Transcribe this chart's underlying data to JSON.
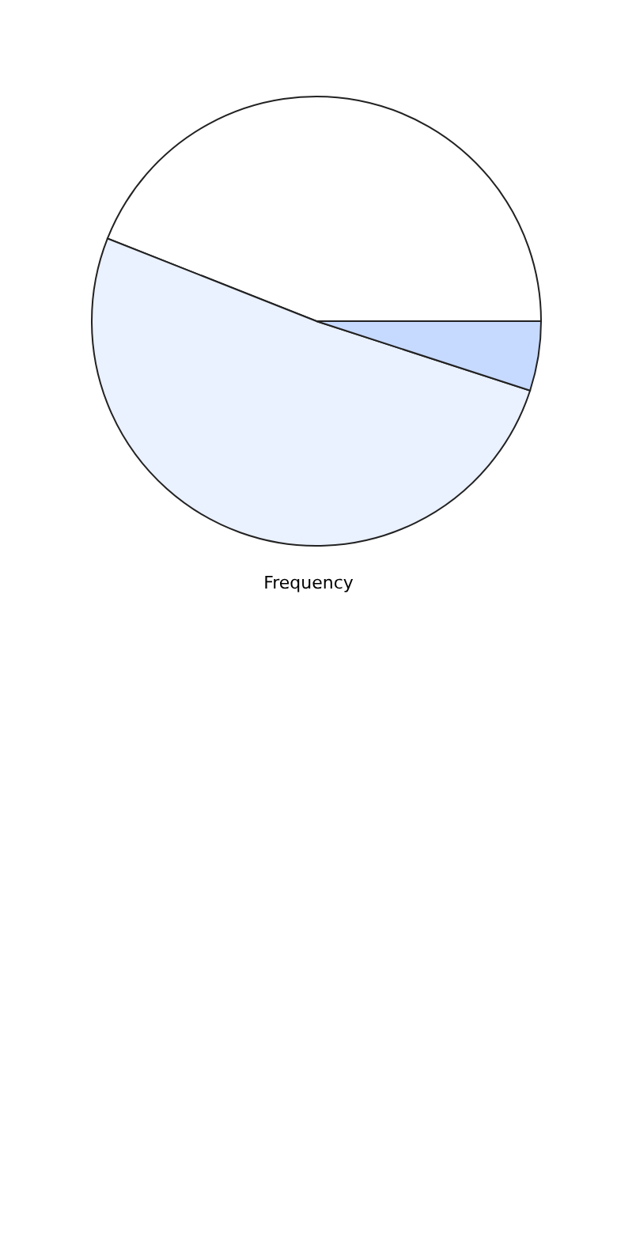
{
  "chart_data": {
    "type": "pie",
    "title": "Frequency",
    "categories": [
      null,
      null,
      null
    ],
    "values": [
      44,
      51,
      5
    ],
    "colors": [
      "#ffffff",
      "#eaf1ff",
      "#c6d9ff"
    ]
  }
}
